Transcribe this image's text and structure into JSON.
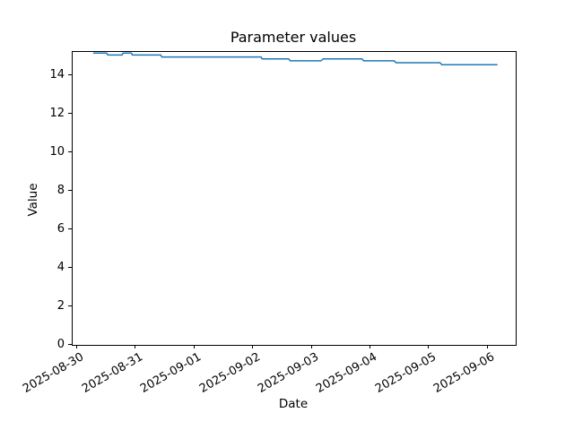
{
  "figure": {
    "title": "Parameter values",
    "xlabel": "Date",
    "ylabel": "Value"
  },
  "chart_data": {
    "type": "line",
    "title": "Parameter values",
    "xlabel": "Date",
    "ylabel": "Value",
    "grid": false,
    "legend": false,
    "line_color": "#1f77b4",
    "line_width": 1.5,
    "background_color": "#ffffff",
    "x_unit": "days since 2025-08-30",
    "x_tick_days": [
      0,
      1,
      2,
      3,
      4,
      5,
      6,
      7
    ],
    "x_tick_labels": [
      "2025-08-30",
      "2025-08-31",
      "2025-09-01",
      "2025-09-02",
      "2025-09-03",
      "2025-09-04",
      "2025-09-05",
      "2025-09-06"
    ],
    "y_ticks": [
      0,
      2,
      4,
      6,
      8,
      10,
      12,
      14
    ],
    "xlim": [
      -0.08,
      7.47
    ],
    "ylim": [
      0,
      15.21
    ],
    "series": [
      {
        "name": "Parameter values",
        "points": [
          [
            0.27,
            15.15
          ],
          [
            0.5,
            15.15
          ],
          [
            0.52,
            15.05
          ],
          [
            0.76,
            15.05
          ],
          [
            0.78,
            15.15
          ],
          [
            0.92,
            15.15
          ],
          [
            0.94,
            15.05
          ],
          [
            1.42,
            15.05
          ],
          [
            1.44,
            14.95
          ],
          [
            3.13,
            14.95
          ],
          [
            3.15,
            14.85
          ],
          [
            3.6,
            14.85
          ],
          [
            3.63,
            14.75
          ],
          [
            4.15,
            14.75
          ],
          [
            4.19,
            14.85
          ],
          [
            4.85,
            14.85
          ],
          [
            4.88,
            14.75
          ],
          [
            5.4,
            14.75
          ],
          [
            5.43,
            14.65
          ],
          [
            6.18,
            14.65
          ],
          [
            6.21,
            14.55
          ],
          [
            7.16,
            14.55
          ]
        ]
      }
    ]
  }
}
